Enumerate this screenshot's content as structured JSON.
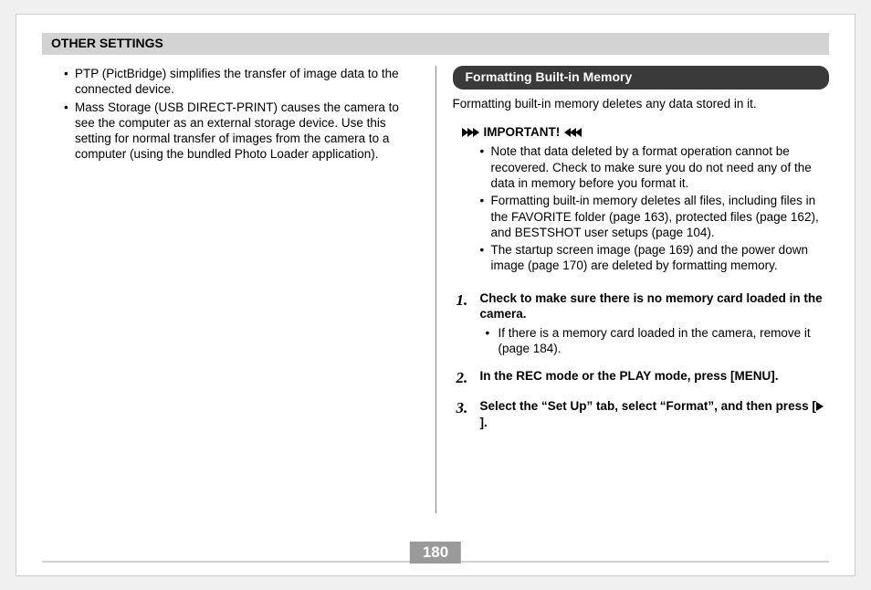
{
  "header": {
    "title": "OTHER SETTINGS"
  },
  "left": {
    "bullets": [
      "PTP (PictBridge) simplifies the transfer of image data to the connected device.",
      "Mass Storage (USB DIRECT-PRINT) causes the camera to see the computer as an external storage device. Use this setting for normal transfer of images from the camera to a computer (using the bundled Photo Loader application)."
    ]
  },
  "right": {
    "pill": "Formatting Built-in Memory",
    "intro": "Formatting built-in memory deletes any data stored in it.",
    "important_label": "IMPORTANT!",
    "important_bullets": [
      "Note that data deleted by a format operation cannot be recovered. Check to make sure you do not need any of the data in memory before you format it.",
      "Formatting built-in memory deletes all files, including files in the FAVORITE folder (page 163), protected files (page 162), and BESTSHOT user setups (page 104).",
      "The startup screen image (page 169) and the power down image (page 170) are deleted by formatting memory."
    ],
    "steps": [
      {
        "num": "1.",
        "title": "Check to make sure there is no memory card loaded in the camera.",
        "sub": "If there is a memory card loaded in the camera, remove it (page 184)."
      },
      {
        "num": "2.",
        "title": "In the REC mode or the PLAY mode, press [MENU]."
      },
      {
        "num": "3.",
        "title_pre": "Select the “Set Up” tab, select “Format”, and then press [",
        "title_post": "]."
      }
    ]
  },
  "footer": {
    "page": "180"
  }
}
